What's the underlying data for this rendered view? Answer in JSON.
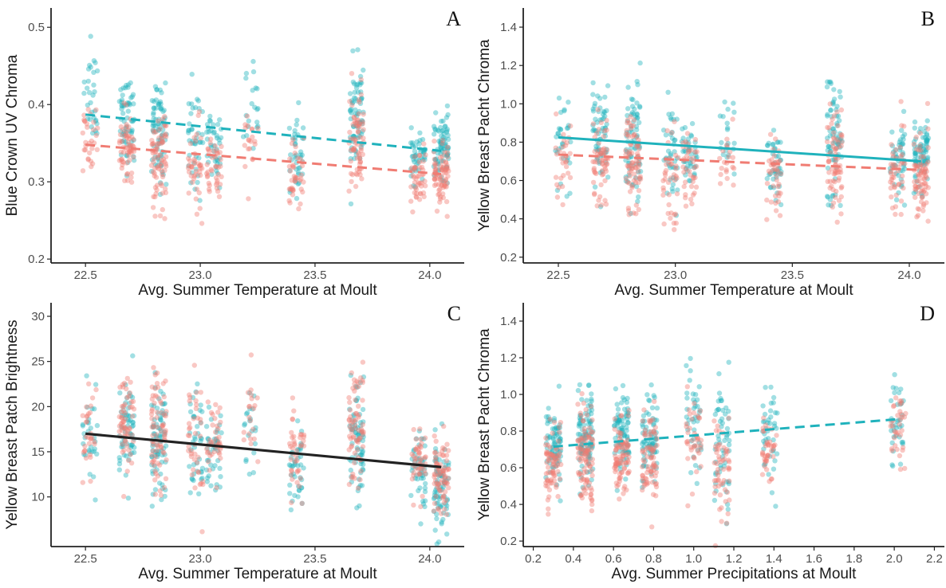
{
  "colors": {
    "red": "#F07C73",
    "teal": "#1FB2BC",
    "black": "#222222",
    "axis": "#222222"
  },
  "chart_data": [
    {
      "type": "scatter",
      "panel_letter": "A",
      "xlabel": "Avg. Summer Temperature at Moult",
      "ylabel": "Blue Crown UV Chroma",
      "xlim": [
        22.35,
        24.15
      ],
      "ylim": [
        0.195,
        0.525
      ],
      "xticks": [
        22.5,
        23.0,
        23.5,
        24.0
      ],
      "xtick_labels": [
        "22.5",
        "23.0",
        "23.5",
        "24.0"
      ],
      "yticks": [
        0.2,
        0.3,
        0.4,
        0.5
      ],
      "ytick_labels": [
        "0.2",
        "0.3",
        "0.4",
        "0.5"
      ],
      "grid": false,
      "clusters": [
        {
          "x": 22.52,
          "n": 60,
          "groups": [
            {
              "color": "teal",
              "mean": 0.405,
              "sd": 0.03
            },
            {
              "color": "red",
              "mean": 0.36,
              "sd": 0.025
            }
          ]
        },
        {
          "x": 22.68,
          "n": 120,
          "groups": [
            {
              "color": "teal",
              "mean": 0.385,
              "sd": 0.03
            },
            {
              "color": "red",
              "mean": 0.34,
              "sd": 0.025
            }
          ]
        },
        {
          "x": 22.82,
          "n": 150,
          "groups": [
            {
              "color": "teal",
              "mean": 0.37,
              "sd": 0.035
            },
            {
              "color": "red",
              "mean": 0.33,
              "sd": 0.03
            }
          ]
        },
        {
          "x": 22.98,
          "n": 80,
          "groups": [
            {
              "color": "teal",
              "mean": 0.36,
              "sd": 0.03
            },
            {
              "color": "red",
              "mean": 0.32,
              "sd": 0.03
            }
          ]
        },
        {
          "x": 23.06,
          "n": 80,
          "groups": [
            {
              "color": "teal",
              "mean": 0.345,
              "sd": 0.025
            },
            {
              "color": "red",
              "mean": 0.32,
              "sd": 0.02
            }
          ]
        },
        {
          "x": 23.22,
          "n": 40,
          "groups": [
            {
              "color": "teal",
              "mean": 0.4,
              "sd": 0.03
            },
            {
              "color": "red",
              "mean": 0.35,
              "sd": 0.025
            }
          ]
        },
        {
          "x": 23.42,
          "n": 80,
          "groups": [
            {
              "color": "teal",
              "mean": 0.335,
              "sd": 0.025
            },
            {
              "color": "red",
              "mean": 0.3,
              "sd": 0.025
            }
          ]
        },
        {
          "x": 23.68,
          "n": 140,
          "groups": [
            {
              "color": "teal",
              "mean": 0.385,
              "sd": 0.04
            },
            {
              "color": "red",
              "mean": 0.35,
              "sd": 0.03
            }
          ]
        },
        {
          "x": 23.95,
          "n": 90,
          "groups": [
            {
              "color": "teal",
              "mean": 0.33,
              "sd": 0.02
            },
            {
              "color": "red",
              "mean": 0.305,
              "sd": 0.02
            }
          ]
        },
        {
          "x": 24.05,
          "n": 150,
          "groups": [
            {
              "color": "teal",
              "mean": 0.34,
              "sd": 0.02
            },
            {
              "color": "red",
              "mean": 0.31,
              "sd": 0.02
            }
          ]
        }
      ],
      "lines": [
        {
          "color": "teal",
          "dashed": true,
          "x": [
            22.5,
            24.05
          ],
          "y": [
            0.387,
            0.34
          ]
        },
        {
          "color": "red",
          "dashed": true,
          "x": [
            22.5,
            24.05
          ],
          "y": [
            0.348,
            0.31
          ]
        }
      ]
    },
    {
      "type": "scatter",
      "panel_letter": "B",
      "xlabel": "Avg. Summer Temperature at Moult",
      "ylabel": "Yellow Breast Pacht Chroma",
      "xlim": [
        22.35,
        24.15
      ],
      "ylim": [
        0.17,
        1.5
      ],
      "xticks": [
        22.5,
        23.0,
        23.5,
        24.0
      ],
      "xtick_labels": [
        "22.5",
        "23.0",
        "23.5",
        "24.0"
      ],
      "yticks": [
        0.2,
        0.4,
        0.6,
        0.8,
        1.0,
        1.2,
        1.4
      ],
      "ytick_labels": [
        "0.2",
        "0.4",
        "0.6",
        "0.8",
        "1.0",
        "1.2",
        "1.4"
      ],
      "grid": false,
      "clusters": [
        {
          "x": 22.52,
          "n": 60,
          "groups": [
            {
              "color": "teal",
              "mean": 0.82,
              "sd": 0.13
            },
            {
              "color": "red",
              "mean": 0.72,
              "sd": 0.1
            }
          ]
        },
        {
          "x": 22.68,
          "n": 120,
          "groups": [
            {
              "color": "teal",
              "mean": 0.82,
              "sd": 0.14
            },
            {
              "color": "red",
              "mean": 0.72,
              "sd": 0.12
            }
          ]
        },
        {
          "x": 22.82,
          "n": 150,
          "groups": [
            {
              "color": "teal",
              "mean": 0.82,
              "sd": 0.16
            },
            {
              "color": "red",
              "mean": 0.7,
              "sd": 0.14
            }
          ]
        },
        {
          "x": 22.98,
          "n": 80,
          "groups": [
            {
              "color": "teal",
              "mean": 0.75,
              "sd": 0.15
            },
            {
              "color": "red",
              "mean": 0.62,
              "sd": 0.15
            }
          ]
        },
        {
          "x": 23.06,
          "n": 80,
          "groups": [
            {
              "color": "teal",
              "mean": 0.76,
              "sd": 0.1
            },
            {
              "color": "red",
              "mean": 0.68,
              "sd": 0.1
            }
          ]
        },
        {
          "x": 23.22,
          "n": 40,
          "groups": [
            {
              "color": "teal",
              "mean": 0.85,
              "sd": 0.12
            },
            {
              "color": "red",
              "mean": 0.72,
              "sd": 0.1
            }
          ]
        },
        {
          "x": 23.42,
          "n": 80,
          "groups": [
            {
              "color": "teal",
              "mean": 0.7,
              "sd": 0.1
            },
            {
              "color": "red",
              "mean": 0.6,
              "sd": 0.1
            }
          ]
        },
        {
          "x": 23.68,
          "n": 140,
          "groups": [
            {
              "color": "teal",
              "mean": 0.8,
              "sd": 0.16
            },
            {
              "color": "red",
              "mean": 0.7,
              "sd": 0.13
            }
          ]
        },
        {
          "x": 23.95,
          "n": 90,
          "groups": [
            {
              "color": "teal",
              "mean": 0.72,
              "sd": 0.1
            },
            {
              "color": "red",
              "mean": 0.62,
              "sd": 0.1
            }
          ]
        },
        {
          "x": 24.05,
          "n": 150,
          "groups": [
            {
              "color": "teal",
              "mean": 0.74,
              "sd": 0.1
            },
            {
              "color": "red",
              "mean": 0.62,
              "sd": 0.1
            }
          ]
        }
      ],
      "lines": [
        {
          "color": "teal",
          "dashed": false,
          "x": [
            22.5,
            24.05
          ],
          "y": [
            0.825,
            0.7
          ]
        },
        {
          "color": "red",
          "dashed": true,
          "x": [
            22.5,
            24.05
          ],
          "y": [
            0.735,
            0.655
          ]
        }
      ]
    },
    {
      "type": "scatter",
      "panel_letter": "C",
      "xlabel": "Avg. Summer Temperature at Moult",
      "ylabel": "Yellow Breast Patch Brightness",
      "xlim": [
        22.35,
        24.15
      ],
      "ylim": [
        4.5,
        31.5
      ],
      "xticks": [
        22.5,
        23.0,
        23.5,
        24.0
      ],
      "xtick_labels": [
        "22.5",
        "23.0",
        "23.5",
        "24.0"
      ],
      "yticks": [
        10,
        15,
        20,
        25,
        30
      ],
      "ytick_labels": [
        "10",
        "15",
        "20",
        "25",
        "30"
      ],
      "grid": false,
      "clusters": [
        {
          "x": 22.52,
          "n": 60,
          "groups": [
            {
              "color": "teal",
              "mean": 16.0,
              "sd": 2.8
            },
            {
              "color": "red",
              "mean": 17.0,
              "sd": 2.5
            }
          ]
        },
        {
          "x": 22.68,
          "n": 120,
          "groups": [
            {
              "color": "teal",
              "mean": 17.0,
              "sd": 3.0
            },
            {
              "color": "red",
              "mean": 18.0,
              "sd": 3.0
            }
          ]
        },
        {
          "x": 22.82,
          "n": 150,
          "groups": [
            {
              "color": "teal",
              "mean": 16.0,
              "sd": 3.2
            },
            {
              "color": "red",
              "mean": 17.5,
              "sd": 3.2
            }
          ]
        },
        {
          "x": 22.98,
          "n": 80,
          "groups": [
            {
              "color": "teal",
              "mean": 15.0,
              "sd": 3.0
            },
            {
              "color": "red",
              "mean": 16.5,
              "sd": 3.5
            }
          ]
        },
        {
          "x": 23.06,
          "n": 80,
          "groups": [
            {
              "color": "teal",
              "mean": 15.0,
              "sd": 2.5
            },
            {
              "color": "red",
              "mean": 16.0,
              "sd": 2.5
            }
          ]
        },
        {
          "x": 23.22,
          "n": 40,
          "groups": [
            {
              "color": "teal",
              "mean": 17.0,
              "sd": 2.5
            },
            {
              "color": "red",
              "mean": 18.5,
              "sd": 3.0
            }
          ]
        },
        {
          "x": 23.42,
          "n": 80,
          "groups": [
            {
              "color": "teal",
              "mean": 13.0,
              "sd": 2.2
            },
            {
              "color": "red",
              "mean": 14.0,
              "sd": 2.5
            }
          ]
        },
        {
          "x": 23.68,
          "n": 140,
          "groups": [
            {
              "color": "teal",
              "mean": 16.5,
              "sd": 3.5
            },
            {
              "color": "red",
              "mean": 18.0,
              "sd": 3.5
            }
          ]
        },
        {
          "x": 23.95,
          "n": 90,
          "groups": [
            {
              "color": "teal",
              "mean": 13.0,
              "sd": 2.2
            },
            {
              "color": "red",
              "mean": 14.0,
              "sd": 2.2
            }
          ]
        },
        {
          "x": 24.05,
          "n": 150,
          "groups": [
            {
              "color": "teal",
              "mean": 11.5,
              "sd": 2.5
            },
            {
              "color": "red",
              "mean": 12.5,
              "sd": 2.5
            }
          ]
        }
      ],
      "lines": [
        {
          "color": "black",
          "dashed": false,
          "x": [
            22.5,
            24.05
          ],
          "y": [
            17.0,
            13.3
          ]
        }
      ]
    },
    {
      "type": "scatter",
      "panel_letter": "D",
      "xlabel": "Avg. Summer Precipitations at Moult",
      "ylabel": "Yellow Breast Pacht Chroma",
      "xlim": [
        0.15,
        2.25
      ],
      "ylim": [
        0.17,
        1.5
      ],
      "xticks": [
        0.2,
        0.4,
        0.6,
        0.8,
        1.0,
        1.2,
        1.4,
        1.6,
        1.8,
        2.0,
        2.2
      ],
      "xtick_labels": [
        "0.2",
        "0.4",
        "0.6",
        "0.8",
        "1.0",
        "1.2",
        "1.4",
        "1.6",
        "1.8",
        "2.0",
        "2.2"
      ],
      "yticks": [
        0.2,
        0.4,
        0.6,
        0.8,
        1.0,
        1.2,
        1.4
      ],
      "ytick_labels": [
        "0.2",
        "0.4",
        "0.6",
        "0.8",
        "1.0",
        "1.2",
        "1.4"
      ],
      "grid": false,
      "clusters": [
        {
          "x": 0.3,
          "n": 150,
          "groups": [
            {
              "color": "teal",
              "mean": 0.72,
              "sd": 0.1
            },
            {
              "color": "red",
              "mean": 0.63,
              "sd": 0.1
            }
          ]
        },
        {
          "x": 0.46,
          "n": 200,
          "groups": [
            {
              "color": "teal",
              "mean": 0.76,
              "sd": 0.14
            },
            {
              "color": "red",
              "mean": 0.66,
              "sd": 0.12
            }
          ]
        },
        {
          "x": 0.64,
          "n": 170,
          "groups": [
            {
              "color": "teal",
              "mean": 0.78,
              "sd": 0.12
            },
            {
              "color": "red",
              "mean": 0.68,
              "sd": 0.1
            }
          ]
        },
        {
          "x": 0.78,
          "n": 150,
          "groups": [
            {
              "color": "teal",
              "mean": 0.75,
              "sd": 0.14
            },
            {
              "color": "red",
              "mean": 0.65,
              "sd": 0.13
            }
          ]
        },
        {
          "x": 1.0,
          "n": 80,
          "groups": [
            {
              "color": "teal",
              "mean": 0.85,
              "sd": 0.16
            },
            {
              "color": "red",
              "mean": 0.78,
              "sd": 0.15
            }
          ]
        },
        {
          "x": 1.14,
          "n": 110,
          "groups": [
            {
              "color": "teal",
              "mean": 0.75,
              "sd": 0.16
            },
            {
              "color": "red",
              "mean": 0.6,
              "sd": 0.14
            }
          ]
        },
        {
          "x": 1.38,
          "n": 80,
          "groups": [
            {
              "color": "teal",
              "mean": 0.8,
              "sd": 0.12
            },
            {
              "color": "red",
              "mean": 0.68,
              "sd": 0.1
            }
          ]
        },
        {
          "x": 2.02,
          "n": 70,
          "groups": [
            {
              "color": "teal",
              "mean": 0.88,
              "sd": 0.12
            },
            {
              "color": "red",
              "mean": 0.78,
              "sd": 0.1
            }
          ]
        }
      ],
      "lines": [
        {
          "color": "teal",
          "dashed": true,
          "x": [
            0.3,
            2.02
          ],
          "y": [
            0.715,
            0.865
          ]
        }
      ]
    }
  ]
}
